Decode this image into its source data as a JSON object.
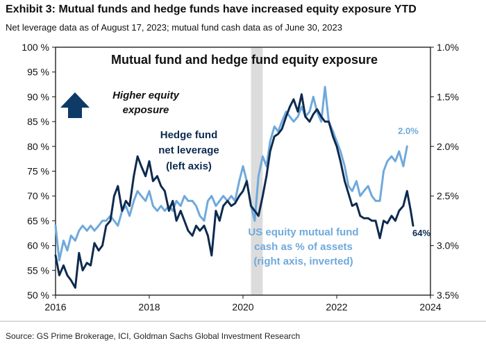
{
  "exhibit": {
    "title": "Exhibit 3: Mutual funds and hedge funds have increased equity exposure YTD",
    "subtitle": "Net leverage data as of August 17, 2023; mutual fund cash data as of June 30, 2023",
    "source": "Source: GS Prime Brokerage, ICI, Goldman Sachs Global Investment Research"
  },
  "colors": {
    "hedge_fund": "#0d2a4e",
    "mutual_fund": "#6fa9dc",
    "shade": "#dcdcdc",
    "arrow": "#0d3a66"
  },
  "chart_data": {
    "type": "line",
    "title": "Mutual fund and hedge fund equity exposure",
    "x_ticks": [
      "2016",
      "2018",
      "2020",
      "2022",
      "2024"
    ],
    "xlim": [
      2016,
      2024
    ],
    "left_axis": {
      "ticks": [
        "50 %",
        "55 %",
        "60 %",
        "65 %",
        "70 %",
        "75 %",
        "80 %",
        "85 %",
        "90 %",
        "95 %",
        "100 %"
      ],
      "ylim": [
        50,
        100
      ]
    },
    "right_axis": {
      "ticks": [
        "1.0%",
        "1.5%",
        "2.0%",
        "2.5%",
        "3.0%",
        "3.5%"
      ],
      "ylim": [
        1.0,
        3.5
      ],
      "inverted": true
    },
    "shaded_period": [
      2020.17,
      2020.42
    ],
    "annotations": {
      "higher_line1": "Higher equity",
      "higher_line2": "exposure",
      "hf_line1": "Hedge fund",
      "hf_line2": "net leverage",
      "hf_line3": "(left axis)",
      "mf_line1": "US equity mutual fund",
      "mf_line2": "cash as % of assets",
      "mf_line3": "(right axis, inverted)",
      "mf_end": "2.0%",
      "hf_end": "64%"
    },
    "series": [
      {
        "key": "hedge_fund",
        "axis": "left",
        "x": [
          2016.0,
          2016.08,
          2016.17,
          2016.25,
          2016.33,
          2016.42,
          2016.5,
          2016.58,
          2016.67,
          2016.75,
          2016.83,
          2016.92,
          2017.0,
          2017.08,
          2017.17,
          2017.25,
          2017.33,
          2017.42,
          2017.5,
          2017.58,
          2017.67,
          2017.75,
          2017.83,
          2017.92,
          2018.0,
          2018.08,
          2018.17,
          2018.25,
          2018.33,
          2018.42,
          2018.5,
          2018.58,
          2018.67,
          2018.75,
          2018.83,
          2018.92,
          2019.0,
          2019.08,
          2019.17,
          2019.25,
          2019.33,
          2019.42,
          2019.5,
          2019.58,
          2019.67,
          2019.75,
          2019.83,
          2019.92,
          2020.0,
          2020.08,
          2020.17,
          2020.25,
          2020.33,
          2020.42,
          2020.5,
          2020.58,
          2020.67,
          2020.75,
          2020.83,
          2020.92,
          2021.0,
          2021.08,
          2021.17,
          2021.25,
          2021.33,
          2021.42,
          2021.5,
          2021.58,
          2021.67,
          2021.75,
          2021.83,
          2021.92,
          2022.0,
          2022.08,
          2022.17,
          2022.25,
          2022.33,
          2022.42,
          2022.5,
          2022.58,
          2022.67,
          2022.75,
          2022.83,
          2022.92,
          2023.0,
          2023.08,
          2023.17,
          2023.25,
          2023.33,
          2023.42,
          2023.5,
          2023.58,
          2023.63
        ],
        "values": [
          58,
          54,
          56,
          54,
          53,
          51.5,
          58.5,
          55,
          56.5,
          56,
          60.5,
          59,
          60,
          64,
          65,
          70,
          72,
          67,
          69,
          68,
          74,
          78,
          76,
          74,
          77,
          73,
          74,
          72,
          71,
          67,
          69,
          65,
          67,
          65,
          63,
          62,
          64,
          63,
          64,
          62,
          58,
          67,
          65,
          68,
          69,
          68,
          68.5,
          70,
          71,
          73,
          68,
          67,
          66,
          70,
          74,
          79,
          82,
          82.5,
          83.5,
          86,
          88,
          89.5,
          87,
          90.5,
          86,
          85,
          86.5,
          87.5,
          86,
          85,
          85,
          82,
          80,
          77,
          73,
          70.5,
          68,
          68.5,
          66,
          65.5,
          65.5,
          65,
          65,
          61.5,
          65,
          64.5,
          66,
          65,
          67,
          68,
          71,
          67,
          64
        ]
      },
      {
        "key": "mutual_fund",
        "axis": "right",
        "x": [
          2016.0,
          2016.08,
          2016.17,
          2016.25,
          2016.33,
          2016.42,
          2016.5,
          2016.58,
          2016.67,
          2016.75,
          2016.83,
          2016.92,
          2017.0,
          2017.08,
          2017.17,
          2017.25,
          2017.33,
          2017.42,
          2017.5,
          2017.58,
          2017.67,
          2017.75,
          2017.83,
          2017.92,
          2018.0,
          2018.08,
          2018.17,
          2018.25,
          2018.33,
          2018.42,
          2018.5,
          2018.58,
          2018.67,
          2018.75,
          2018.83,
          2018.92,
          2019.0,
          2019.08,
          2019.17,
          2019.25,
          2019.33,
          2019.42,
          2019.5,
          2019.58,
          2019.67,
          2019.75,
          2019.83,
          2019.92,
          2020.0,
          2020.08,
          2020.17,
          2020.25,
          2020.33,
          2020.42,
          2020.5,
          2020.58,
          2020.67,
          2020.75,
          2020.83,
          2020.92,
          2021.0,
          2021.08,
          2021.17,
          2021.25,
          2021.33,
          2021.42,
          2021.5,
          2021.58,
          2021.67,
          2021.75,
          2021.83,
          2021.92,
          2022.0,
          2022.08,
          2022.17,
          2022.25,
          2022.33,
          2022.42,
          2022.5,
          2022.58,
          2022.67,
          2022.75,
          2022.83,
          2022.92,
          2023.0,
          2023.08,
          2023.17,
          2023.25,
          2023.33,
          2023.42,
          2023.5
        ],
        "values": [
          2.8,
          3.15,
          2.95,
          3.05,
          2.9,
          2.95,
          2.85,
          2.8,
          2.85,
          2.8,
          2.85,
          2.8,
          2.75,
          2.75,
          2.7,
          2.75,
          2.8,
          2.65,
          2.6,
          2.7,
          2.55,
          2.45,
          2.5,
          2.55,
          2.45,
          2.6,
          2.65,
          2.6,
          2.65,
          2.6,
          2.65,
          2.55,
          2.6,
          2.5,
          2.55,
          2.55,
          2.6,
          2.7,
          2.75,
          2.55,
          2.5,
          2.6,
          2.55,
          2.5,
          2.55,
          2.5,
          2.55,
          2.35,
          2.2,
          2.35,
          2.6,
          2.75,
          2.3,
          2.1,
          2.2,
          1.95,
          1.8,
          1.85,
          1.75,
          1.65,
          1.7,
          1.75,
          1.7,
          1.6,
          1.7,
          1.65,
          1.5,
          1.65,
          1.75,
          1.4,
          1.75,
          1.85,
          1.95,
          2.05,
          2.2,
          2.4,
          2.45,
          2.35,
          2.5,
          2.45,
          2.4,
          2.5,
          2.55,
          2.55,
          2.25,
          2.15,
          2.1,
          2.15,
          2.05,
          2.2,
          2.0
        ]
      }
    ]
  }
}
